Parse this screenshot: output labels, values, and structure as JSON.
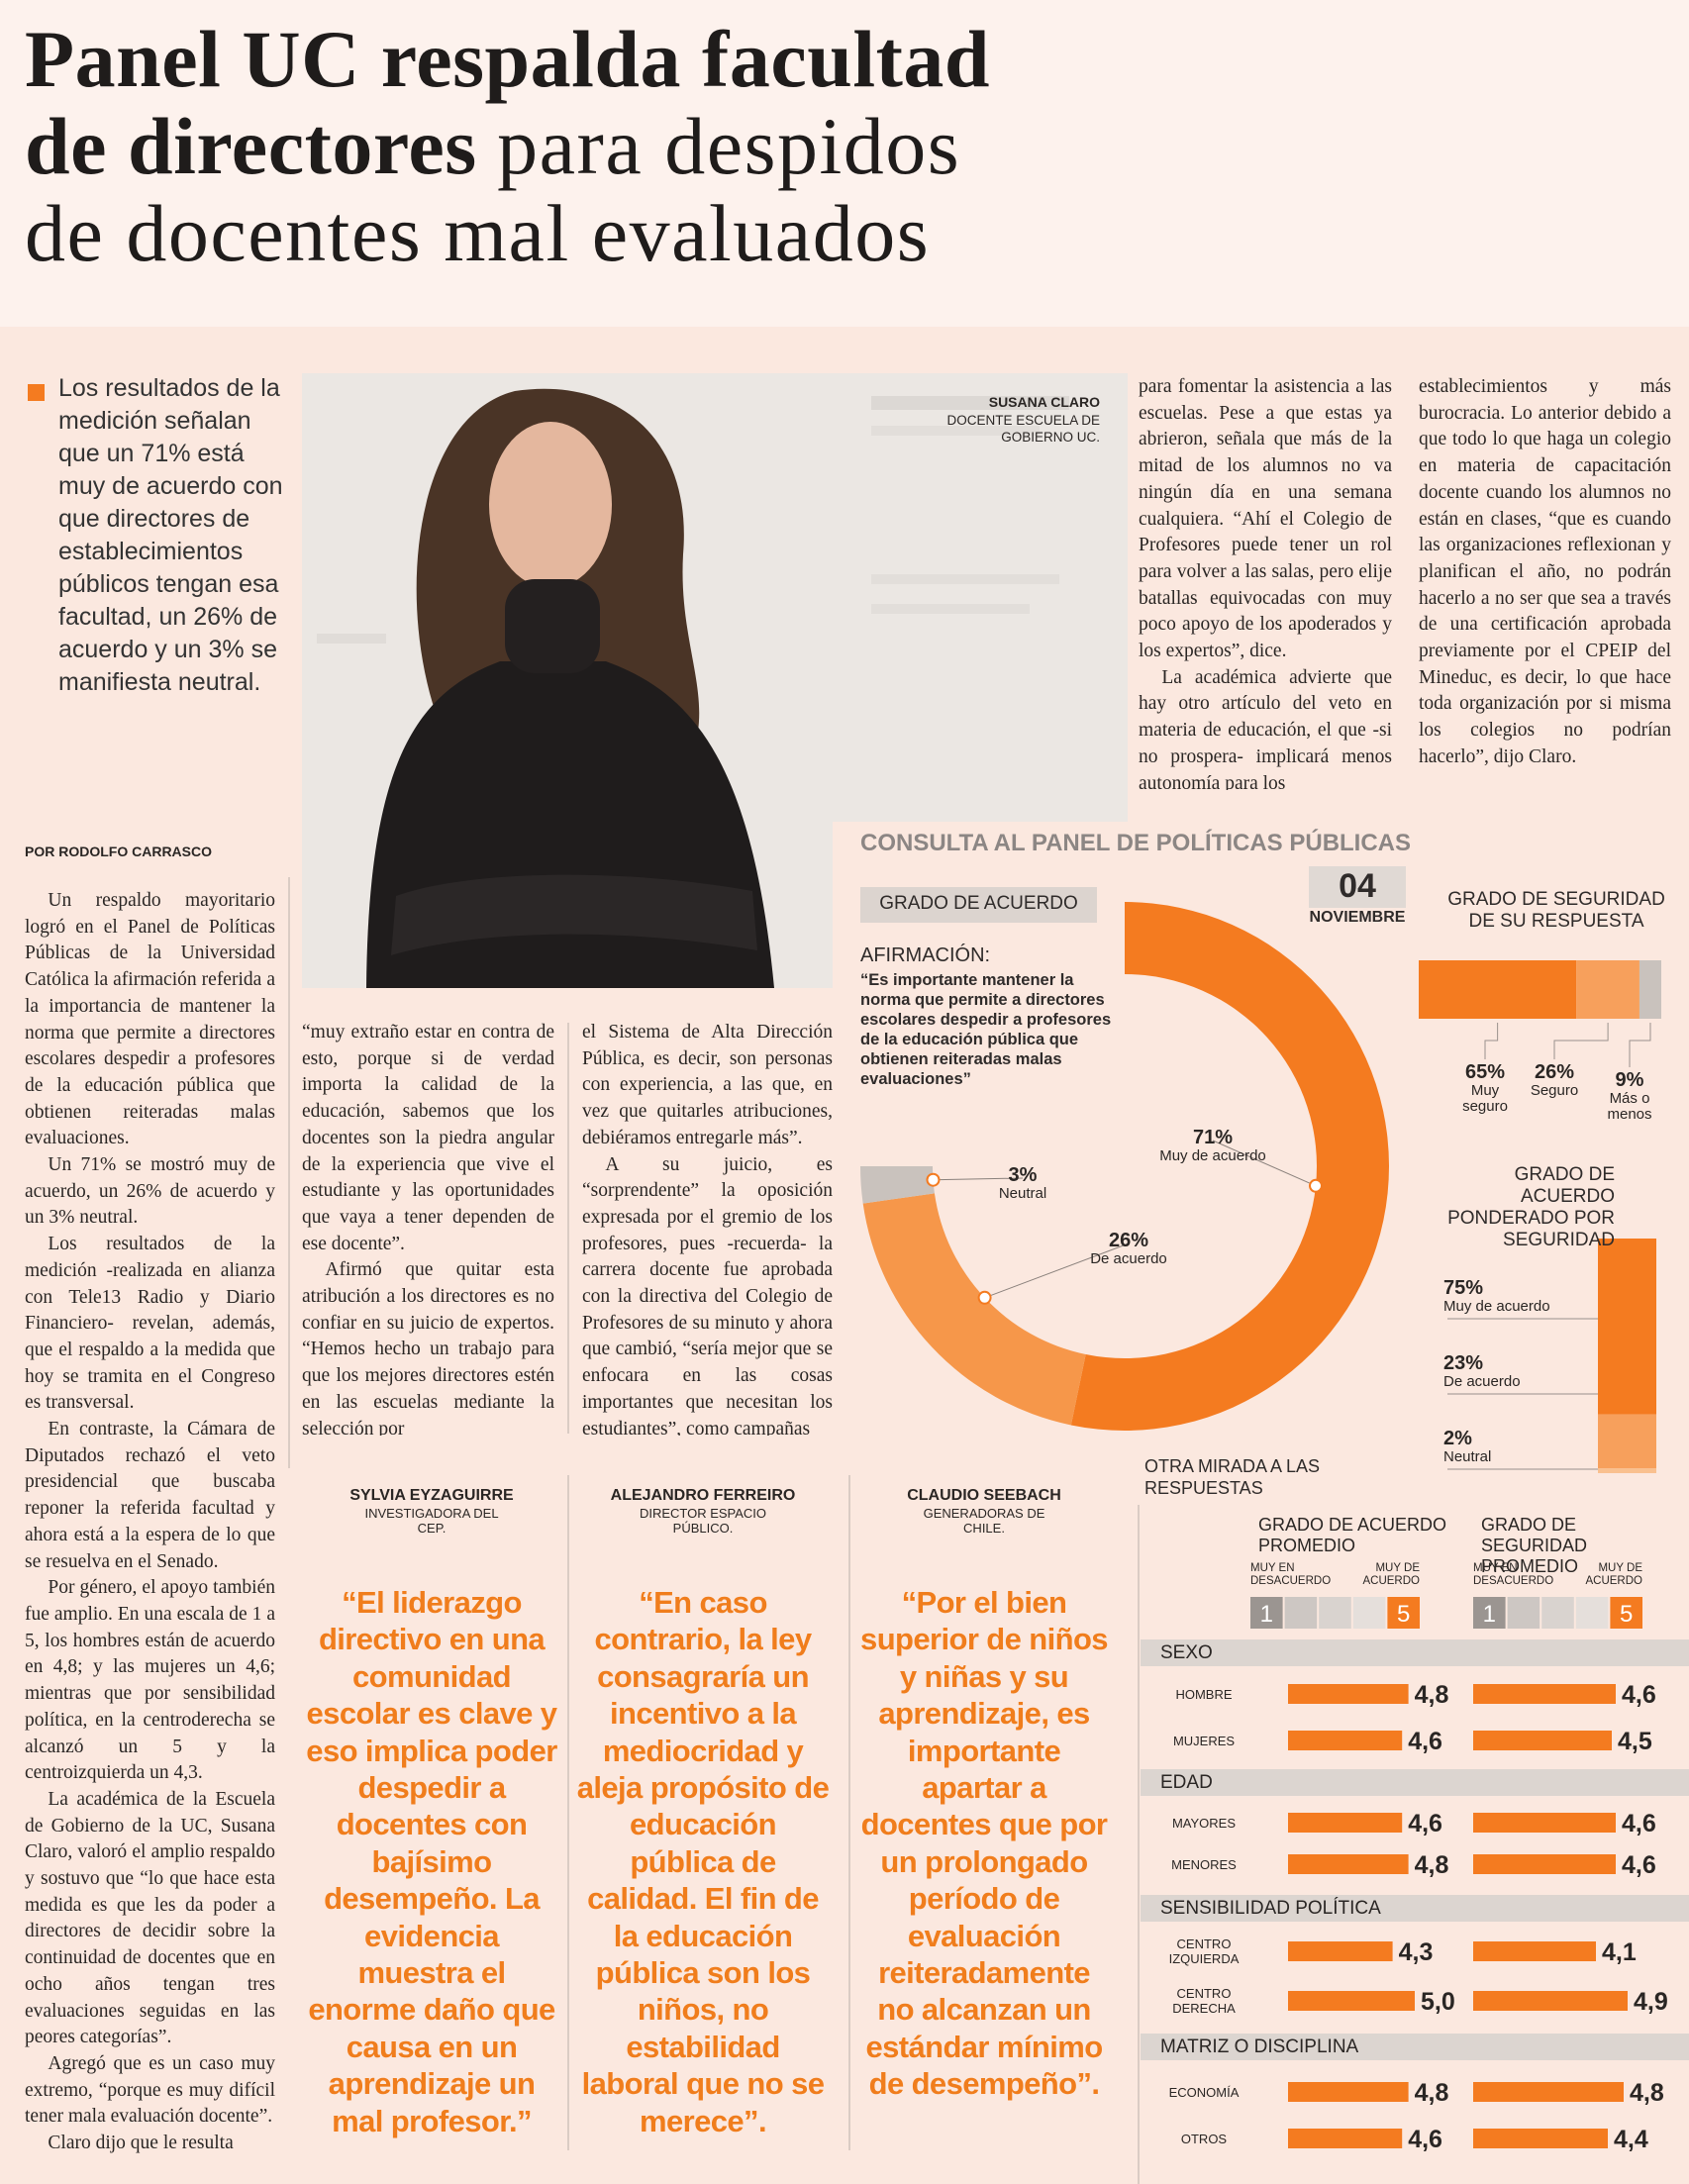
{
  "headline": {
    "line1": "Panel UC respalda facultad",
    "line2_bold": "de directores",
    "line2_regular": "para despidos",
    "line3": "de docentes mal evaluados"
  },
  "lead": "Los resultados de la medición señalan que un 71% está muy de acuerdo con que directores de establecimientos públicos tengan esa facultad, un 26% de acuerdo y un 3% se manifiesta neutral.",
  "byline": "POR RODOLFO CARRASCO",
  "photo_caption": {
    "name": "SUSANA CLARO",
    "role": "DOCENTE ESCUELA DE GOBIERNO UC."
  },
  "article": {
    "columns": [
      [
        "Un respaldo mayoritario logró en el Panel de Políticas Públicas de la Universidad Católica la afirmación referida a la importancia de mantener la norma que permite a directores escolares despedir a profesores de la educación pública que obtienen reiteradas malas evaluaciones.",
        "Un 71% se mostró muy de acuerdo, un 26% de acuerdo y un 3% neutral.",
        "Los resultados de la medición -realizada en alianza con Tele13 Radio y Diario Financiero- revelan, además, que el respaldo a la medida que hoy se tramita en el Congreso es transversal.",
        "En contraste, la Cámara de Diputados rechazó el veto presidencial que buscaba reponer la referida facultad y ahora está a la espera de lo que se resuelva en el Senado.",
        "Por género, el apoyo también fue amplio. En una escala de 1 a 5, los hombres están de acuerdo en 4,8; y las mujeres un 4,6; mientras que por sensibilidad política, en la centroderecha se alcanzó un 5 y la centroizquierda un 4,3.",
        "La académica de la Escuela de Gobierno de la UC, Susana Claro, valoró el amplio respaldo y sostuvo que “lo que hace esta medida es que les da poder a directores de decidir sobre la continuidad de docentes que en ocho años tengan tres evaluaciones seguidas en las peores categorías”.",
        "Agregó que es un caso muy extremo, “porque es muy difícil tener mala evaluación docente”.",
        "Claro dijo que le resulta"
      ],
      [
        "“muy extraño estar en contra de esto, porque si de verdad importa la calidad de la educación, sabemos que los docentes son la piedra angular de la experiencia que vive el estudiante y las oportunidades que vaya a tener dependen de ese docente”.",
        "Afirmó que quitar esta atribución a los directores es no confiar en su juicio de expertos. “Hemos hecho un trabajo para que los mejores directores estén en las escuelas mediante la selección por"
      ],
      [
        "el Sistema de Alta Dirección Pública, es decir, son personas con experiencia, a las que, en vez que quitarles atribuciones, debiéramos entregarle más”.",
        "A su juicio, es “sorprendente” la oposición expresada por el gremio de los profesores, pues -recuerda- la carrera docente fue aprobada con la directiva del Colegio de Profesores de su minuto y ahora que cambió, “sería mejor que se enfocara en las cosas importantes que necesitan los estudiantes”, como campañas"
      ],
      [
        "para fomentar la asistencia a las escuelas. Pese a que estas ya abrieron, señala que más de la mitad de los alumnos no va ningún día en una semana cualquiera. “Ahí el Colegio de Profesores puede tener un rol para volver a las salas, pero elije batallas equivocadas con muy poco apoyo de los apoderados y los expertos”, dice.",
        "La académica advierte que hay otro artículo del veto en materia de educación, el que -si no prospera- implicará menos autonomía para los"
      ],
      [
        "establecimientos y más burocracia. Lo anterior debido a que todo lo que haga un colegio en materia de capacitación docente cuando los alumnos no están en clases, “que es cuando las organizaciones reflexionan y planifican el año, no podrán hacerlo a no ser que sea a través de una certificación aprobada previamente por el CPEIP del Mineduc, es decir, lo que hace toda organización por si misma los colegios no podrían hacerlo”, dijo Claro."
      ]
    ]
  },
  "quotes": [
    {
      "name": "SYLVIA EYZAGUIRRE",
      "role": "INVESTIGADORA DEL CEP.",
      "text": "“El liderazgo directivo en una comunidad escolar es clave y eso implica poder despedir a docentes con bajísimo desempeño. La evidencia muestra el enorme daño que causa en un aprendizaje un mal profesor.”"
    },
    {
      "name": "ALEJANDRO FERREIRO",
      "role": "DIRECTOR ESPACIO PÚBLICO.",
      "text": "“En caso contrario, la ley consagraría un incentivo a la mediocridad y aleja propósito de educación pública de calidad. El fin de la educación pública son los niños, no estabilidad laboral que no se merece”."
    },
    {
      "name": "CLAUDIO SEEBACH",
      "role": "GENERADORAS DE CHILE.",
      "text": "“Por el bien superior de niños y niñas y su aprendizaje, es importante apartar a docentes que por un prolongado período de evaluación reiteradamente no alcanzan un estándar mínimo de desempeño”."
    }
  ],
  "infographic": {
    "title": "CONSULTA AL PANEL DE POLÍTICAS PÚBLICAS",
    "date": {
      "day": "04",
      "month": "NOVIEMBRE"
    },
    "agreement": {
      "type": "donut",
      "heading": "GRADO DE ACUERDO",
      "statement_label": "AFIRMACIÓN:",
      "statement": "“Es importante mantener la norma que permite a directores escolares despedir a profesores de la educación pública que obtienen reiteradas malas evaluaciones”",
      "categories": [
        "Muy de acuerdo",
        "De acuerdo",
        "Neutral"
      ],
      "values": [
        71,
        26,
        3
      ],
      "value_labels": [
        "71%",
        "26%",
        "3%"
      ],
      "colors": [
        "#f47b20",
        "#f6974a",
        "#c9c2bd"
      ]
    },
    "certainty": {
      "type": "stacked_bar",
      "heading": "GRADO DE SEGURIDAD DE SU RESPUESTA",
      "categories": [
        "Muy seguro",
        "Seguro",
        "Más o menos"
      ],
      "values": [
        65,
        26,
        9
      ],
      "value_labels": [
        "65%",
        "26%",
        "9%"
      ],
      "colors": [
        "#f47b20",
        "#f7a05c",
        "#c9c2bd"
      ]
    },
    "weighted": {
      "type": "stacked_column",
      "heading": "GRADO DE ACUERDO PONDERADO POR SEGURIDAD",
      "categories": [
        "Muy de acuerdo",
        "De acuerdo",
        "Neutral"
      ],
      "values": [
        75,
        23,
        2
      ],
      "value_labels": [
        "75%",
        "23%",
        "2%"
      ],
      "colors": [
        "#f47b20",
        "#f7a05c",
        "#f9c08f"
      ]
    },
    "breakdown": {
      "type": "bar",
      "heading": "OTRA MIRADA A LAS RESPUESTAS",
      "scale_min_label": "MUY EN DESACUERDO",
      "scale_max_label": "MUY DE ACUERDO",
      "xlim": [
        1,
        5
      ],
      "color": "#f47b20",
      "groups": [
        {
          "name": "SEXO",
          "rows": [
            "HOMBRE",
            "MUJERES"
          ]
        },
        {
          "name": "EDAD",
          "rows": [
            "MAYORES",
            "MENORES"
          ]
        },
        {
          "name": "SENSIBILIDAD POLÍTICA",
          "rows": [
            "CENTRO IZQUIERDA",
            "CENTRO DERECHA"
          ]
        },
        {
          "name": "MATRIZ O DISCIPLINA",
          "rows": [
            "ECONOMÍA",
            "OTROS"
          ]
        }
      ],
      "panels": [
        {
          "name": "GRADO DE ACUERDO PROMEDIO",
          "values": [
            4.8,
            4.6,
            4.6,
            4.8,
            4.3,
            5.0,
            4.8,
            4.6
          ],
          "value_labels": [
            "4,8",
            "4,6",
            "4,6",
            "4,8",
            "4,3",
            "5,0",
            "4,8",
            "4,6"
          ]
        },
        {
          "name": "GRADO DE SEGURIDAD PROMEDIO",
          "values": [
            4.6,
            4.5,
            4.6,
            4.6,
            4.1,
            4.9,
            4.8,
            4.4
          ],
          "value_labels": [
            "4,6",
            "4,5",
            "4,6",
            "4,6",
            "4,1",
            "4,9",
            "4,8",
            "4,4"
          ]
        }
      ]
    }
  }
}
